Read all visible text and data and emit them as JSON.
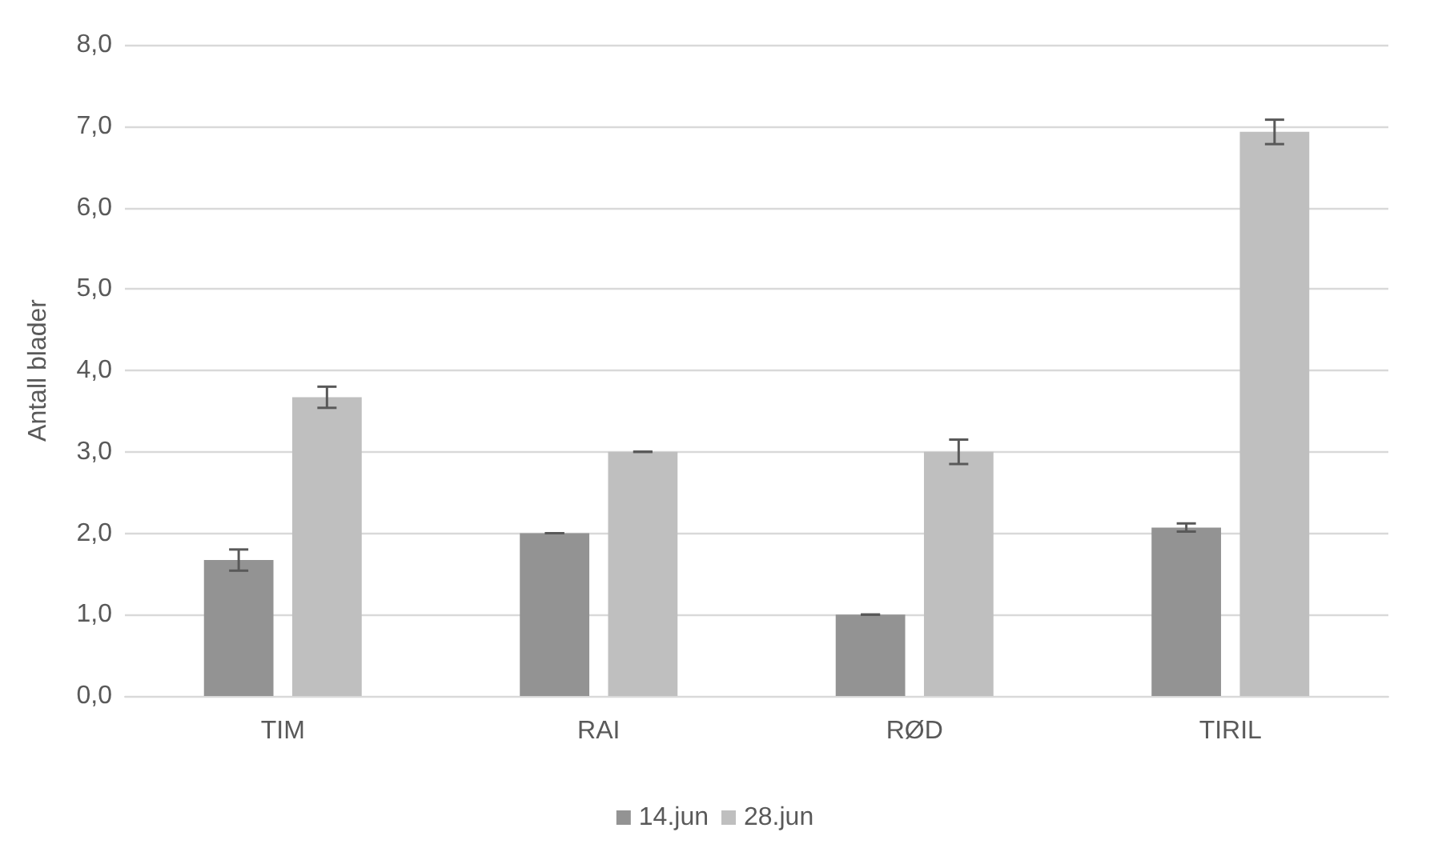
{
  "chart_data": {
    "type": "bar",
    "ylabel": "Antall blader",
    "categories": [
      "TIM",
      "RAI",
      "RØD",
      "TIRIL"
    ],
    "series": [
      {
        "name": "14.jun",
        "color": "#939393",
        "values": [
          1.67,
          2.0,
          1.0,
          2.07
        ],
        "errors": [
          0.13,
          0,
          0,
          0.05
        ]
      },
      {
        "name": "28.jun",
        "color": "#bfbfbf",
        "values": [
          3.67,
          3.0,
          3.0,
          6.93
        ],
        "errors": [
          0.13,
          0,
          0.15,
          0.15
        ]
      }
    ],
    "ylim": [
      0,
      8
    ],
    "yticks": [
      {
        "value": 0,
        "label": "0,0"
      },
      {
        "value": 1,
        "label": "1,0"
      },
      {
        "value": 2,
        "label": "2,0"
      },
      {
        "value": 3,
        "label": "3,0"
      },
      {
        "value": 4,
        "label": "4,0"
      },
      {
        "value": 5,
        "label": "5,0"
      },
      {
        "value": 6,
        "label": "6,0"
      },
      {
        "value": 7,
        "label": "7,0"
      },
      {
        "value": 8,
        "label": "8,0"
      }
    ],
    "grid": true,
    "legend": "bottom"
  }
}
